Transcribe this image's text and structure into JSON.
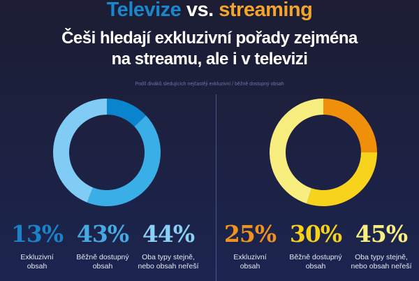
{
  "title": {
    "part1": "Televize",
    "vs": " vs. ",
    "part2": "streaming",
    "colors": {
      "part1": "#1a86cc",
      "part2": "#f2a52a"
    }
  },
  "headline": {
    "line1": "Češi hledají exkluzivní pořady zejména",
    "line2": "na streamu, ale i v televizi"
  },
  "subtitle": "Podíl diváků sledujících nejčastěji exkluzivní / běžně dostupný obsah",
  "chart_data": [
    {
      "type": "pie",
      "donut": true,
      "group": "Televize",
      "categories": [
        "Exkluzivní obsah",
        "Běžně dostupný obsah",
        "Oba typy stejně, nebo obsah neřeší"
      ],
      "values": [
        13,
        43,
        44
      ],
      "labels": [
        "13%",
        "43%",
        "44%"
      ],
      "colors": [
        "#0a84cc",
        "#3aaee6",
        "#80ccf5"
      ]
    },
    {
      "type": "pie",
      "donut": true,
      "group": "streaming",
      "categories": [
        "Exkluzivní obsah",
        "Běžně dostupný obsah",
        "Oba typy stejně, nebo obsah neřeší"
      ],
      "values": [
        25,
        30,
        45
      ],
      "labels": [
        "25%",
        "30%",
        "45%"
      ],
      "colors": [
        "#f0900a",
        "#f8d31c",
        "#f8ee80"
      ]
    }
  ],
  "stats_left": [
    {
      "pct": "13%",
      "l1": "Exkluzivní",
      "l2": "obsah",
      "color": "#1a82c8"
    },
    {
      "pct": "43%",
      "l1": "Běžně dostupný",
      "l2": "obsah",
      "color": "#47a9e2"
    },
    {
      "pct": "44%",
      "l1": "Oba typy stejně,",
      "l2": "nebo obsah neřeší",
      "color": "#8ad0f6"
    }
  ],
  "stats_right": [
    {
      "pct": "25%",
      "l1": "Exkluzivní",
      "l2": "obsah",
      "color": "#f0921e"
    },
    {
      "pct": "30%",
      "l1": "Běžně dostupný",
      "l2": "obsah",
      "color": "#f6d01a"
    },
    {
      "pct": "45%",
      "l1": "Oba typy stejně,",
      "l2": "nebo obsah neřeší",
      "color": "#f8ee80"
    }
  ]
}
